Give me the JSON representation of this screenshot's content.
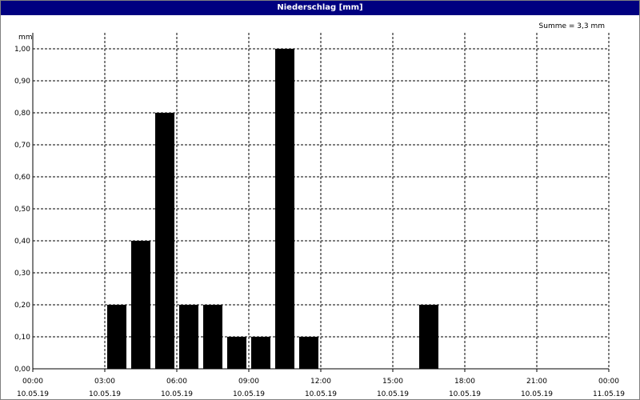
{
  "window": {
    "title": "Niederschlag [mm]"
  },
  "chart_data": {
    "type": "bar",
    "title": "Niederschlag [mm]",
    "ylabel": "mm",
    "annotation": "Summe = 3,3 mm",
    "ylim": [
      0,
      1.0
    ],
    "y_ticks": [
      "0,00",
      "0,10",
      "0,20",
      "0,30",
      "0,40",
      "0,50",
      "0,60",
      "0,70",
      "0,80",
      "0,90",
      "1,00"
    ],
    "x_range_hours": [
      0,
      24
    ],
    "x_ticks": [
      {
        "time": "00:00",
        "date": "10.05.19"
      },
      {
        "time": "03:00",
        "date": "10.05.19"
      },
      {
        "time": "06:00",
        "date": "10.05.19"
      },
      {
        "time": "09:00",
        "date": "10.05.19"
      },
      {
        "time": "12:00",
        "date": "10.05.19"
      },
      {
        "time": "15:00",
        "date": "10.05.19"
      },
      {
        "time": "18:00",
        "date": "10.05.19"
      },
      {
        "time": "21:00",
        "date": "10.05.19"
      },
      {
        "time": "00:00",
        "date": "11.05.19"
      }
    ],
    "grid": true,
    "bars": [
      {
        "hour": 3,
        "value": 0.2
      },
      {
        "hour": 4,
        "value": 0.4
      },
      {
        "hour": 5,
        "value": 0.8
      },
      {
        "hour": 6,
        "value": 0.2
      },
      {
        "hour": 7,
        "value": 0.2
      },
      {
        "hour": 8,
        "value": 0.1
      },
      {
        "hour": 9,
        "value": 0.1
      },
      {
        "hour": 10,
        "value": 1.0
      },
      {
        "hour": 11,
        "value": 0.1
      },
      {
        "hour": 16,
        "value": 0.2
      }
    ],
    "bar_color": "#000000"
  }
}
